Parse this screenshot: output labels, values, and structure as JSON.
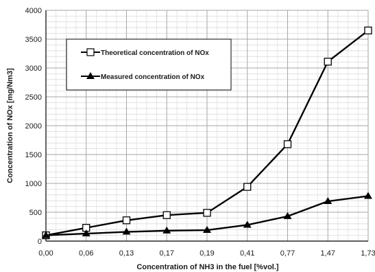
{
  "chart_data": {
    "type": "line",
    "xlabel": "Concentration of NH3 in the fuel [%vol.]",
    "ylabel": "Concentration of NOx [mg/Nm3]",
    "categories": [
      "0,00",
      "0,06",
      "0,13",
      "0,17",
      "0,19",
      "0,41",
      "0,77",
      "1,47",
      "1,73"
    ],
    "ylim": [
      0,
      4000
    ],
    "yticks": [
      0,
      500,
      1000,
      1500,
      2000,
      2500,
      3000,
      3500,
      4000
    ],
    "grid": true,
    "legend_position": "upper-left",
    "series": [
      {
        "name": "Theoretical concentration of NOx",
        "marker": "open-square",
        "color": "#000000",
        "values": [
          100,
          230,
          360,
          450,
          490,
          940,
          1680,
          3110,
          3650
        ]
      },
      {
        "name": "Measured concentration of NOx",
        "marker": "filled-triangle",
        "color": "#000000",
        "values": [
          100,
          130,
          160,
          180,
          190,
          280,
          430,
          690,
          780
        ]
      }
    ]
  }
}
